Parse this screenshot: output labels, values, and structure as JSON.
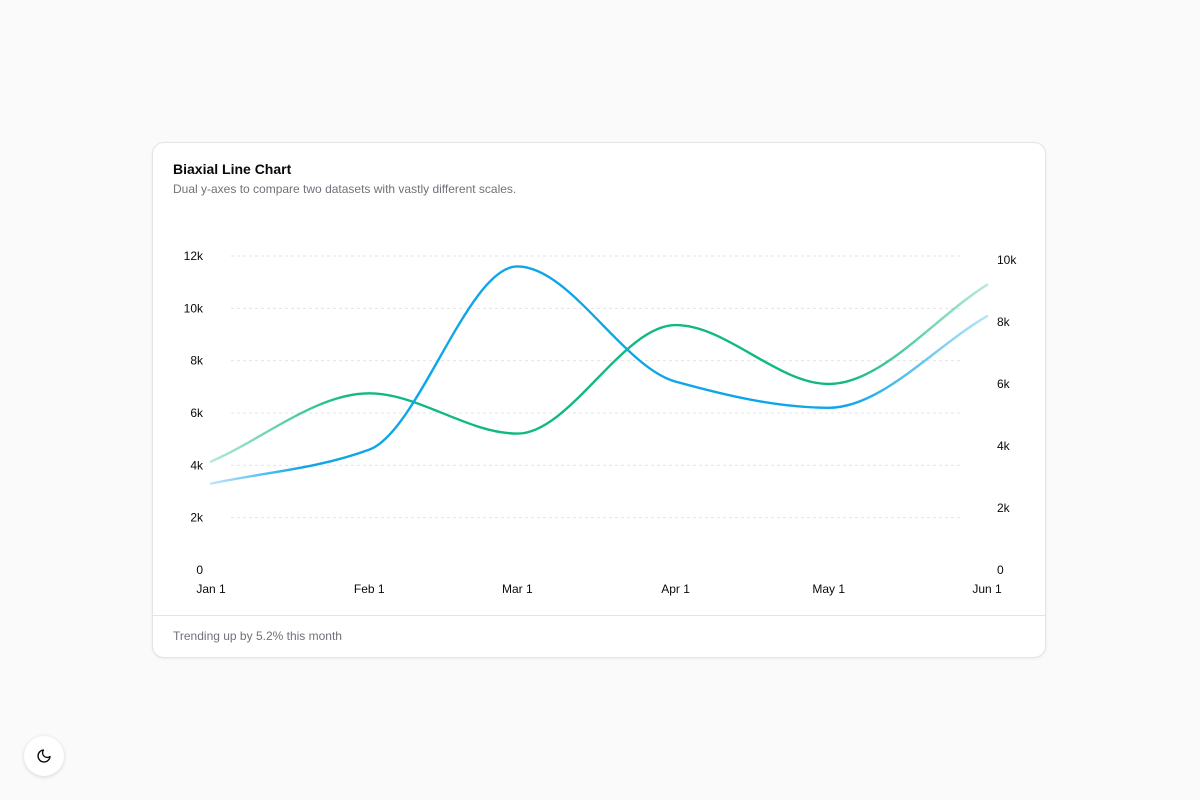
{
  "card": {
    "title": "Biaxial Line Chart",
    "description": "Dual y-axes to compare two datasets with vastly different scales.",
    "footer": "Trending up by 5.2% this month"
  },
  "theme_toggle": {
    "icon": "moon-icon"
  },
  "chart_data": {
    "type": "line",
    "title": "Biaxial Line Chart",
    "x_ticks": [
      "Jan 1",
      "Feb 1",
      "Mar 1",
      "Apr 1",
      "May 1",
      "Jun 1"
    ],
    "x_range": [
      "2024-01-01",
      "2024-06-01"
    ],
    "left_axis": {
      "ticks": [
        "0",
        "2k",
        "4k",
        "6k",
        "8k",
        "10k",
        "12k"
      ],
      "ylim": [
        0,
        12000
      ]
    },
    "right_axis": {
      "ticks": [
        "0",
        "2k",
        "4k",
        "6k",
        "8k",
        "10k"
      ],
      "ylim": [
        0,
        10000
      ]
    },
    "grid": "horizontal dashed",
    "series": [
      {
        "axis": "left",
        "color": "#0ea5e9",
        "points": [
          {
            "x": "2024-01-01",
            "y": 3300
          },
          {
            "x": "2024-02-01",
            "y": 4600
          },
          {
            "x": "2024-03-01",
            "y": 11600
          },
          {
            "x": "2024-04-01",
            "y": 7200
          },
          {
            "x": "2024-05-01",
            "y": 6200
          },
          {
            "x": "2024-06-01",
            "y": 9700
          }
        ]
      },
      {
        "axis": "right",
        "color": "#10b981",
        "points": [
          {
            "x": "2024-01-01",
            "y": 3500
          },
          {
            "x": "2024-02-01",
            "y": 5700
          },
          {
            "x": "2024-03-01",
            "y": 4400
          },
          {
            "x": "2024-04-01",
            "y": 7900
          },
          {
            "x": "2024-05-01",
            "y": 6000
          },
          {
            "x": "2024-06-01",
            "y": 9200
          }
        ]
      }
    ]
  }
}
